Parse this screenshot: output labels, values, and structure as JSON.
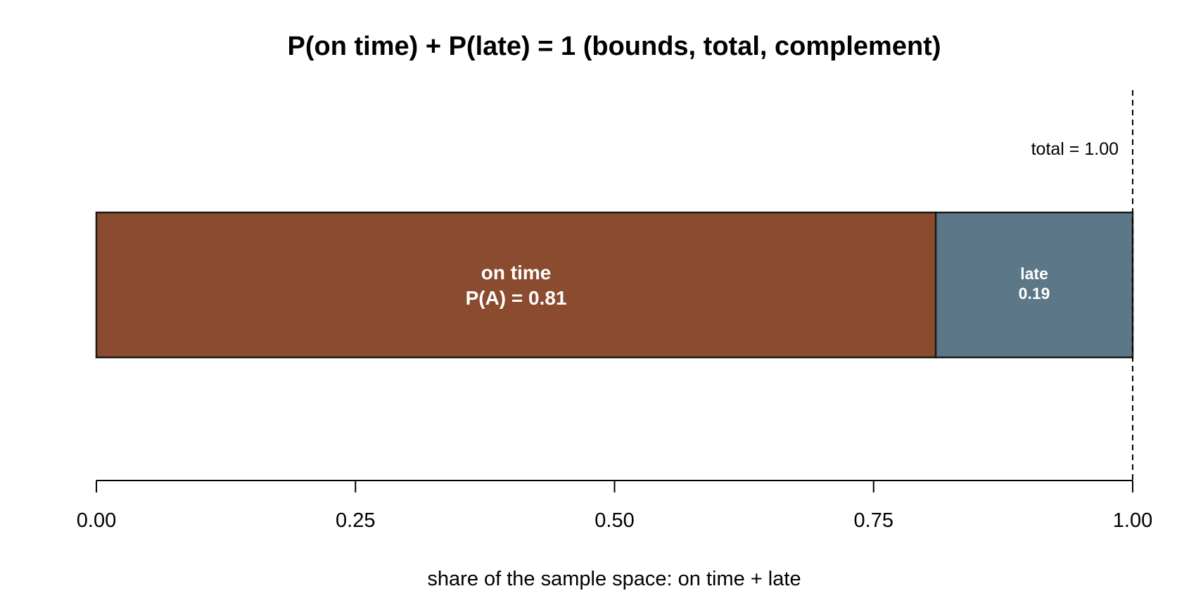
{
  "chart_data": {
    "type": "bar",
    "orientation": "horizontal-stacked",
    "title": "P(on time) + P(late) = 1  (bounds, total, complement)",
    "xlabel": "share of the sample space: on time + late",
    "ylabel": "",
    "xlim": [
      0,
      1
    ],
    "x_ticks": [
      0,
      0.25,
      0.5,
      0.75,
      1
    ],
    "x_tick_labels": [
      "0.00",
      "0.25",
      "0.50",
      "0.75",
      "1.00"
    ],
    "grid": false,
    "segments": [
      {
        "category": "on time",
        "value": 0.81,
        "label_line1": "on time",
        "label_line2": "P(A) = 0.81",
        "color": "#8B4B2E"
      },
      {
        "category": "late",
        "value": 0.19,
        "label_line1": "late",
        "label_line2": "0.19",
        "color": "#5B7788"
      }
    ],
    "reference_line": {
      "x": 1.0,
      "style": "dashed",
      "label": "total = 1.00"
    }
  }
}
